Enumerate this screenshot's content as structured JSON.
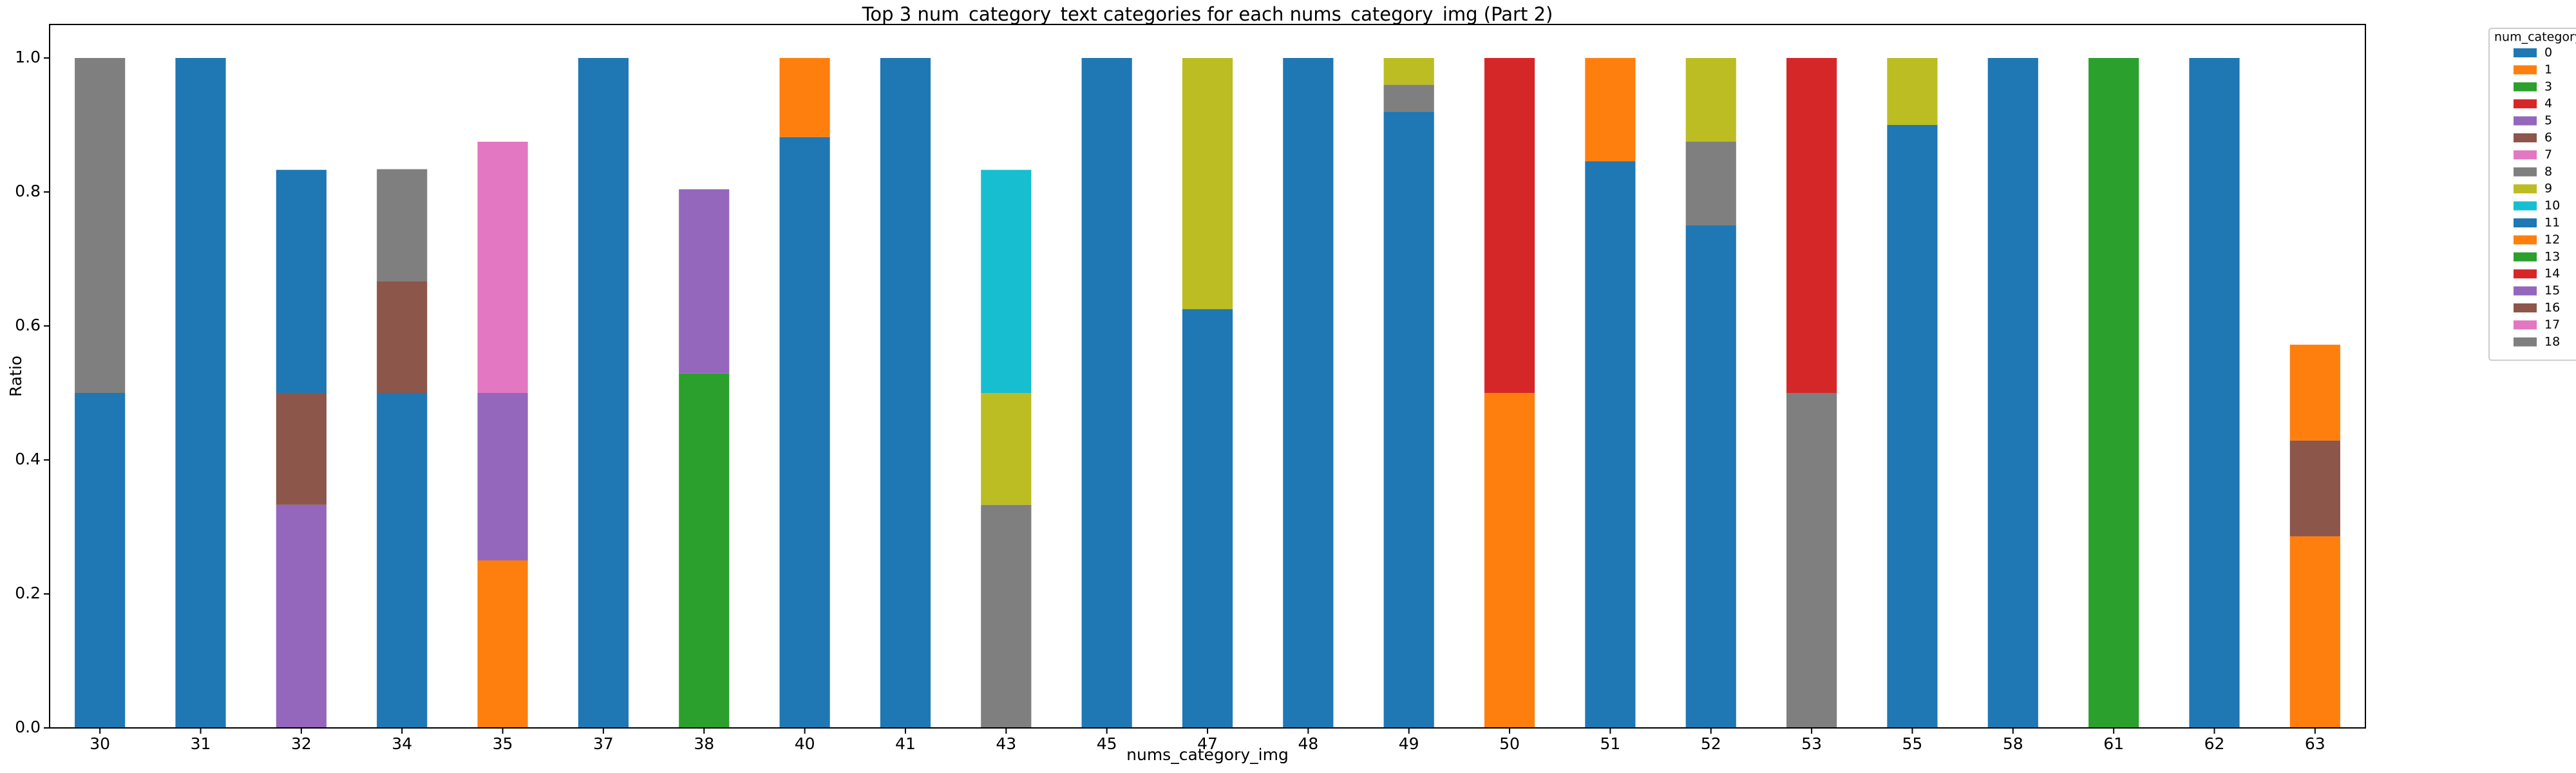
{
  "chart_data": {
    "type": "stacked_bar",
    "title": "Top 3 num_category_text categories for each nums_category_img (Part 2)",
    "x_label": "nums_category_img",
    "y_label": "Ratio",
    "legend_title": "num_category_text",
    "legend_position": "outside-right",
    "categories": [
      "30",
      "31",
      "32",
      "34",
      "35",
      "37",
      "38",
      "40",
      "41",
      "43",
      "45",
      "47",
      "48",
      "49",
      "50",
      "51",
      "52",
      "53",
      "55",
      "58",
      "61",
      "62",
      "63"
    ],
    "ylim": [
      0,
      1.05
    ],
    "yticks": [
      {
        "value": 0,
        "label": "0.0"
      },
      {
        "value": 0.2,
        "label": "0.2"
      },
      {
        "value": 0.4,
        "label": "0.4"
      },
      {
        "value": 0.6,
        "label": "0.6"
      },
      {
        "value": 0.8,
        "label": "0.8"
      },
      {
        "value": 1,
        "label": "1.0"
      }
    ],
    "grid": false,
    "series": [
      {
        "name": "0",
        "color": "#1f77b4",
        "values": [
          0.5,
          1,
          null,
          0.5,
          null,
          1,
          null,
          0.882,
          1,
          null,
          1,
          0.625,
          1,
          0.92,
          null,
          0.846,
          0.75,
          null,
          0.9,
          1,
          null,
          1,
          null
        ]
      },
      {
        "name": "1",
        "color": "#ff7f0e",
        "values": [
          null,
          null,
          null,
          null,
          0.25,
          null,
          null,
          0.118,
          null,
          null,
          null,
          null,
          null,
          null,
          0.5,
          0.154,
          null,
          null,
          null,
          null,
          null,
          null,
          0.286
        ]
      },
      {
        "name": "3",
        "color": "#2ca02c",
        "values": [
          null,
          null,
          null,
          null,
          null,
          null,
          0.529,
          null,
          null,
          null,
          null,
          null,
          null,
          null,
          null,
          null,
          null,
          null,
          null,
          null,
          1,
          null,
          null
        ]
      },
      {
        "name": "4",
        "color": "#d62728",
        "values": [
          null,
          null,
          null,
          null,
          null,
          null,
          null,
          null,
          null,
          null,
          null,
          null,
          null,
          null,
          0.5,
          null,
          null,
          null,
          null,
          null,
          null,
          null,
          null
        ]
      },
      {
        "name": "5",
        "color": "#9467bd",
        "values": [
          null,
          null,
          0.333,
          null,
          0.25,
          null,
          0.275,
          null,
          null,
          null,
          null,
          null,
          null,
          null,
          null,
          null,
          null,
          null,
          null,
          null,
          null,
          null,
          null
        ]
      },
      {
        "name": "6",
        "color": "#8c564b",
        "values": [
          null,
          null,
          0.167,
          0.167,
          null,
          null,
          null,
          null,
          null,
          null,
          null,
          null,
          null,
          null,
          null,
          null,
          null,
          null,
          null,
          null,
          null,
          null,
          0.143
        ]
      },
      {
        "name": "7",
        "color": "#e377c2",
        "values": [
          null,
          null,
          null,
          null,
          0.375,
          null,
          null,
          null,
          null,
          null,
          null,
          null,
          null,
          null,
          null,
          null,
          null,
          null,
          null,
          null,
          null,
          null,
          null
        ]
      },
      {
        "name": "8",
        "color": "#7f7f7f",
        "values": [
          0.5,
          null,
          null,
          0.167,
          null,
          null,
          null,
          null,
          null,
          0.333,
          null,
          null,
          null,
          0.04,
          null,
          null,
          0.125,
          0.5,
          null,
          null,
          null,
          null,
          null
        ]
      },
      {
        "name": "9",
        "color": "#bcbd22",
        "values": [
          null,
          null,
          null,
          null,
          null,
          null,
          null,
          null,
          null,
          0.167,
          null,
          0.375,
          null,
          0.04,
          null,
          null,
          0.125,
          null,
          0.1,
          null,
          null,
          null,
          null
        ]
      },
      {
        "name": "10",
        "color": "#17becf",
        "values": [
          null,
          null,
          null,
          null,
          null,
          null,
          null,
          null,
          null,
          0.333,
          null,
          null,
          null,
          null,
          null,
          null,
          null,
          null,
          null,
          null,
          null,
          null,
          null
        ]
      },
      {
        "name": "11",
        "color": "#1f77b4",
        "values": [
          null,
          null,
          0.333,
          null,
          null,
          null,
          null,
          null,
          null,
          null,
          null,
          null,
          null,
          null,
          null,
          null,
          null,
          null,
          null,
          null,
          null,
          null,
          null
        ]
      },
      {
        "name": "12",
        "color": "#ff7f0e",
        "values": [
          null,
          null,
          null,
          null,
          null,
          null,
          null,
          null,
          null,
          null,
          null,
          null,
          null,
          null,
          null,
          null,
          null,
          null,
          null,
          null,
          null,
          null,
          0.143
        ]
      },
      {
        "name": "13",
        "color": "#2ca02c",
        "values": [
          null,
          null,
          null,
          null,
          null,
          null,
          null,
          null,
          null,
          null,
          null,
          null,
          null,
          null,
          null,
          null,
          null,
          null,
          null,
          null,
          null,
          null,
          null
        ]
      },
      {
        "name": "14",
        "color": "#d62728",
        "values": [
          null,
          null,
          null,
          null,
          null,
          null,
          null,
          null,
          null,
          null,
          null,
          null,
          null,
          null,
          null,
          null,
          null,
          0.5,
          null,
          null,
          null,
          null,
          null
        ]
      },
      {
        "name": "15",
        "color": "#9467bd",
        "values": [
          null,
          null,
          null,
          null,
          null,
          null,
          null,
          null,
          null,
          null,
          null,
          null,
          null,
          null,
          null,
          null,
          null,
          null,
          null,
          null,
          null,
          null,
          null
        ]
      },
      {
        "name": "16",
        "color": "#8c564b",
        "values": [
          null,
          null,
          null,
          null,
          null,
          null,
          null,
          null,
          null,
          null,
          null,
          null,
          null,
          null,
          null,
          null,
          null,
          null,
          null,
          null,
          null,
          null,
          null
        ]
      },
      {
        "name": "17",
        "color": "#e377c2",
        "values": [
          null,
          null,
          null,
          null,
          null,
          null,
          null,
          null,
          null,
          null,
          null,
          null,
          null,
          null,
          null,
          null,
          null,
          null,
          null,
          null,
          null,
          null,
          null
        ]
      },
      {
        "name": "18",
        "color": "#7f7f7f",
        "values": [
          null,
          null,
          null,
          null,
          null,
          null,
          null,
          null,
          null,
          null,
          null,
          null,
          null,
          null,
          null,
          null,
          null,
          null,
          null,
          null,
          null,
          null,
          null
        ]
      }
    ]
  }
}
